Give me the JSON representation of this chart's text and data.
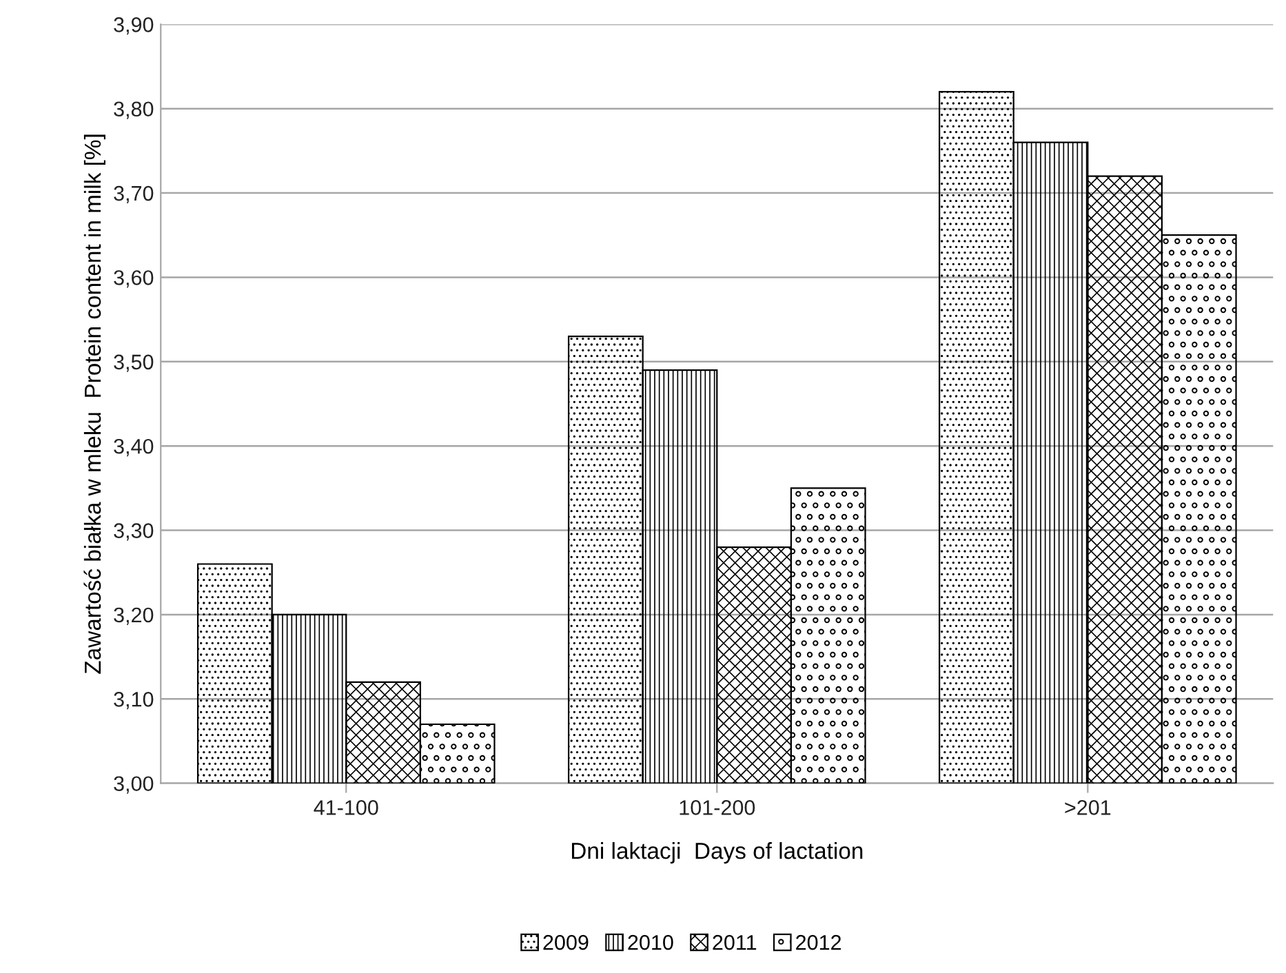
{
  "chart_data": {
    "type": "bar",
    "xlabel": "Dni laktacji  Days of lactation",
    "ylabel": "Zawartość białka w mleku  Protein content in milk [%]",
    "categories": [
      "41-100",
      "101-200",
      ">201"
    ],
    "series": [
      {
        "name": "2009",
        "color": "#000000",
        "values": [
          3.26,
          3.53,
          3.82
        ]
      },
      {
        "name": "2010",
        "color": "#000000",
        "values": [
          3.2,
          3.49,
          3.76
        ]
      },
      {
        "name": "2011",
        "color": "#000000",
        "values": [
          3.12,
          3.28,
          3.72
        ]
      },
      {
        "name": "2012",
        "color": "#000000",
        "values": [
          3.07,
          3.35,
          3.65
        ]
      }
    ],
    "ylim": [
      3.0,
      3.9
    ],
    "yticks": [
      {
        "value": 3.0,
        "label": "3,00"
      },
      {
        "value": 3.1,
        "label": "3,10"
      },
      {
        "value": 3.2,
        "label": "3,20"
      },
      {
        "value": 3.3,
        "label": "3,30"
      },
      {
        "value": 3.4,
        "label": "3,40"
      },
      {
        "value": 3.5,
        "label": "3,50"
      },
      {
        "value": 3.6,
        "label": "3,60"
      },
      {
        "value": 3.7,
        "label": "3,70"
      },
      {
        "value": 3.8,
        "label": "3,80"
      },
      {
        "value": 3.9,
        "label": "3,90"
      }
    ],
    "grid": "y",
    "legend": "bottom"
  }
}
